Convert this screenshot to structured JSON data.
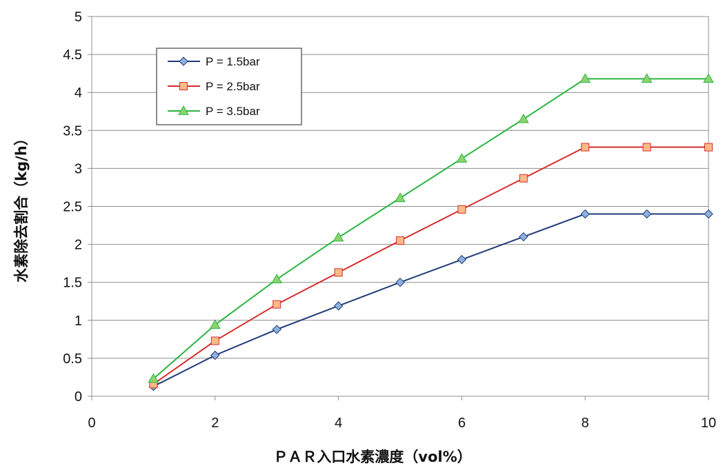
{
  "chart_data": {
    "type": "line",
    "title": "",
    "xlabel": "ＰＡＲ入口水素濃度（vol%）",
    "ylabel": "水素除去割合（kg/h）",
    "xlim": [
      0,
      10
    ],
    "ylim": [
      0,
      5
    ],
    "x_ticks": [
      0,
      2,
      4,
      6,
      8,
      10
    ],
    "y_ticks": [
      "0",
      "0.5",
      "1",
      "1.5",
      "2",
      "2.5",
      "3",
      "3.5",
      "4",
      "4.5",
      "5"
    ],
    "grid": "horizontal",
    "legend_position": "top-left",
    "x": [
      1,
      2,
      3,
      4,
      5,
      6,
      7,
      8,
      9,
      10
    ],
    "series": [
      {
        "name": "P = 1.5bar",
        "color": "#1f3a78",
        "marker": "diamond",
        "marker_color": "#8fb0de",
        "values": [
          0.13,
          0.54,
          0.88,
          1.19,
          1.5,
          1.8,
          2.1,
          2.4,
          2.4,
          2.4
        ]
      },
      {
        "name": "P = 2.5bar",
        "color": "#d62b2b",
        "marker": "square",
        "marker_color": "#f8bb88",
        "values": [
          0.16,
          0.73,
          1.21,
          1.63,
          2.05,
          2.46,
          2.87,
          3.28,
          3.28,
          3.28
        ]
      },
      {
        "name": "P = 3.5bar",
        "color": "#2ab540",
        "marker": "triangle",
        "marker_color": "#8dd36c",
        "values": [
          0.23,
          0.94,
          1.54,
          2.09,
          2.61,
          3.13,
          3.65,
          4.18,
          4.18,
          4.18
        ]
      }
    ]
  }
}
